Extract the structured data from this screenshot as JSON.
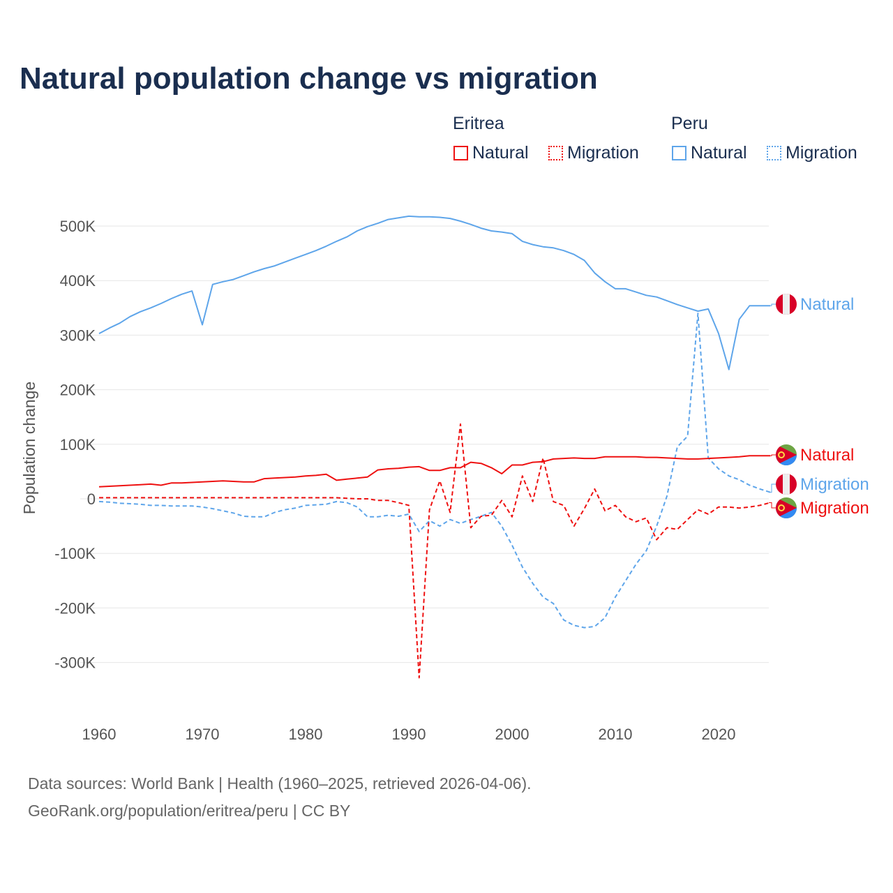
{
  "chart_data": {
    "type": "line",
    "title": "Natural population change vs migration",
    "xlabel": "",
    "ylabel": "Population change",
    "xlim": [
      1960,
      2025
    ],
    "ylim": [
      -350000,
      550000
    ],
    "x_ticks": [
      "1960",
      "1970",
      "1980",
      "1990",
      "2000",
      "2010",
      "2020"
    ],
    "y_ticks": [
      {
        "v": 500000,
        "l": "500K"
      },
      {
        "v": 400000,
        "l": "400K"
      },
      {
        "v": 300000,
        "l": "300K"
      },
      {
        "v": 200000,
        "l": "200K"
      },
      {
        "v": 100000,
        "l": "100K"
      },
      {
        "v": 0,
        "l": "0"
      },
      {
        "v": -100000,
        "l": "-100K"
      },
      {
        "v": -200000,
        "l": "-200K"
      },
      {
        "v": -300000,
        "l": "-300K"
      }
    ],
    "grid": true,
    "legend_placement": "top-right",
    "legend_groups": [
      {
        "name": "Eritrea",
        "items": [
          "Natural",
          "Migration"
        ]
      },
      {
        "name": "Peru",
        "items": [
          "Natural",
          "Migration"
        ]
      }
    ],
    "x_start": 1960,
    "series_units": "thousands",
    "series": [
      {
        "country": "Peru",
        "name": "Natural",
        "color": "#5ea5ea",
        "dash": false,
        "end_label": "Natural",
        "values": [
          303,
          313,
          322,
          334,
          343,
          350,
          358,
          367,
          375,
          381,
          319,
          393,
          398,
          402,
          409,
          416,
          422,
          427,
          434,
          441,
          448,
          455,
          463,
          472,
          480,
          491,
          499,
          505,
          512,
          515,
          518,
          517,
          517,
          516,
          514,
          509,
          503,
          496,
          491,
          489,
          486,
          472,
          466,
          462,
          460,
          455,
          448,
          437,
          414,
          398,
          385,
          385,
          379,
          373,
          370,
          363,
          356,
          350,
          344,
          348,
          303,
          237,
          329,
          354,
          354,
          354
        ]
      },
      {
        "country": "Peru",
        "name": "Migration",
        "color": "#5ea5ea",
        "dash": true,
        "end_label": "Migration",
        "values": [
          -5,
          -6,
          -8,
          -9,
          -10,
          -12,
          -12,
          -13,
          -13,
          -13,
          -15,
          -18,
          -22,
          -26,
          -32,
          -33,
          -33,
          -25,
          -20,
          -17,
          -12,
          -11,
          -10,
          -5,
          -7,
          -15,
          -33,
          -33,
          -30,
          -32,
          -28,
          -60,
          -40,
          -50,
          -38,
          -45,
          -38,
          -32,
          -25,
          -50,
          -85,
          -125,
          -155,
          -180,
          -192,
          -222,
          -232,
          -236,
          -234,
          -218,
          -180,
          -150,
          -120,
          -95,
          -50,
          5,
          95,
          115,
          340,
          75,
          55,
          42,
          35,
          25,
          18,
          12
        ]
      },
      {
        "country": "Eritrea",
        "name": "Natural",
        "color": "#ee1111",
        "dash": false,
        "end_label": "Natural",
        "values": [
          22,
          23,
          24,
          25,
          26,
          27,
          25,
          29,
          29,
          30,
          31,
          32,
          33,
          32,
          31,
          31,
          37,
          38,
          39,
          40,
          42,
          43,
          45,
          34,
          36,
          38,
          40,
          53,
          55,
          56,
          58,
          59,
          52,
          52,
          57,
          57,
          67,
          65,
          57,
          46,
          62,
          62,
          67,
          68,
          73,
          74,
          75,
          74,
          74,
          77,
          77,
          77,
          77,
          76,
          76,
          75,
          74,
          73,
          73,
          74,
          75,
          76,
          77,
          79,
          79,
          79
        ]
      },
      {
        "country": "Eritrea",
        "name": "Migration",
        "color": "#ee1111",
        "dash": true,
        "end_label": "Migration",
        "values": [
          2,
          2,
          2,
          2,
          2,
          2,
          2,
          2,
          2,
          2,
          2,
          2,
          2,
          2,
          2,
          2,
          2,
          2,
          2,
          2,
          2,
          2,
          2,
          2,
          1,
          0,
          0,
          -3,
          -3,
          -7,
          -12,
          -328,
          -20,
          33,
          -25,
          137,
          -53,
          -32,
          -30,
          -3,
          -33,
          42,
          -5,
          75,
          -5,
          -12,
          -50,
          -18,
          18,
          -22,
          -12,
          -33,
          -42,
          -35,
          -75,
          -53,
          -56,
          -38,
          -20,
          -28,
          -15,
          -15,
          -17,
          -15,
          -12,
          -7
        ]
      }
    ]
  },
  "footer": {
    "line1": "Data sources: World Bank | Health (1960–2025, retrieved 2026-04-06).",
    "line2": "GeoRank.org/population/eritrea/peru | CC BY"
  }
}
